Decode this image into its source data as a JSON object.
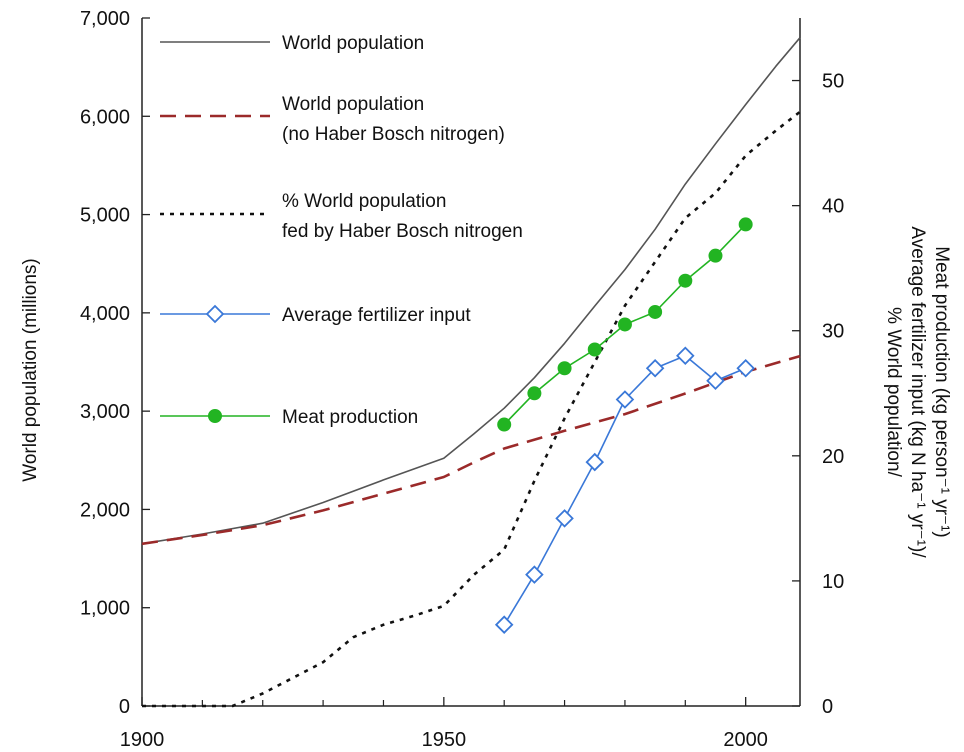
{
  "chart_data": {
    "type": "line",
    "title": "",
    "x": {
      "ticks": [
        1900,
        1950,
        2000
      ],
      "minor_ticks": [
        1910,
        1920,
        1930,
        1940,
        1960,
        1970,
        1980,
        1990
      ],
      "range": [
        1900,
        2009
      ]
    },
    "y_left": {
      "label": "World population (millions)",
      "ticks": [
        0,
        1000,
        2000,
        3000,
        4000,
        5000,
        6000,
        7000
      ],
      "tick_labels": [
        "0",
        "1,000",
        "2,000",
        "3,000",
        "4,000",
        "5,000",
        "6,000",
        "7,000"
      ],
      "range": [
        0,
        7000
      ]
    },
    "y_right": {
      "label_lines": [
        "% World population/",
        "Average fertilizer input (kg N ha⁻¹ yr⁻¹)/",
        "Meat production (kg person⁻¹ yr⁻¹)"
      ],
      "ticks": [
        0,
        10,
        20,
        30,
        40,
        50
      ],
      "range": [
        0,
        55
      ]
    },
    "grid": false,
    "legend_position": "top-left",
    "series": [
      {
        "name": "World population",
        "axis": "left",
        "style": "solid",
        "color": "#555555",
        "points": [
          [
            1900,
            1650
          ],
          [
            1910,
            1750
          ],
          [
            1920,
            1860
          ],
          [
            1930,
            2070
          ],
          [
            1940,
            2300
          ],
          [
            1950,
            2520
          ],
          [
            1955,
            2770
          ],
          [
            1960,
            3030
          ],
          [
            1965,
            3340
          ],
          [
            1970,
            3690
          ],
          [
            1975,
            4070
          ],
          [
            1980,
            4440
          ],
          [
            1985,
            4850
          ],
          [
            1990,
            5310
          ],
          [
            1995,
            5720
          ],
          [
            2000,
            6120
          ],
          [
            2005,
            6510
          ],
          [
            2009,
            6800
          ]
        ]
      },
      {
        "name": "World population\n(no Haber Bosch nitrogen)",
        "axis": "left",
        "style": "dashed",
        "color": "#9b2a2a",
        "points": [
          [
            1900,
            1650
          ],
          [
            1910,
            1740
          ],
          [
            1920,
            1840
          ],
          [
            1930,
            1990
          ],
          [
            1940,
            2160
          ],
          [
            1950,
            2330
          ],
          [
            1955,
            2480
          ],
          [
            1960,
            2620
          ],
          [
            1970,
            2800
          ],
          [
            1980,
            2970
          ],
          [
            1990,
            3180
          ],
          [
            2000,
            3400
          ],
          [
            2009,
            3560
          ]
        ]
      },
      {
        "name": "% World population\nfed by Haber Bosch nitrogen",
        "axis": "right",
        "style": "dotted",
        "color": "#111111",
        "points": [
          [
            1900,
            0
          ],
          [
            1915,
            0
          ],
          [
            1920,
            1
          ],
          [
            1930,
            3.5
          ],
          [
            1935,
            5.5
          ],
          [
            1940,
            6.5
          ],
          [
            1945,
            7.2
          ],
          [
            1950,
            8
          ],
          [
            1955,
            10.5
          ],
          [
            1960,
            12.5
          ],
          [
            1965,
            18
          ],
          [
            1970,
            23
          ],
          [
            1975,
            27.5
          ],
          [
            1980,
            32
          ],
          [
            1985,
            35.5
          ],
          [
            1990,
            39
          ],
          [
            1995,
            41
          ],
          [
            2000,
            44
          ],
          [
            2005,
            46
          ],
          [
            2009,
            47.5
          ]
        ]
      },
      {
        "name": "Average fertilizer input",
        "axis": "right",
        "style": "solid-diamond",
        "color": "#3a78d8",
        "points": [
          [
            1960,
            6.5
          ],
          [
            1965,
            10.5
          ],
          [
            1970,
            15
          ],
          [
            1975,
            19.5
          ],
          [
            1980,
            24.5
          ],
          [
            1985,
            27
          ],
          [
            1990,
            28
          ],
          [
            1995,
            26
          ],
          [
            2000,
            27
          ]
        ]
      },
      {
        "name": "Meat production",
        "axis": "right",
        "style": "solid-dot",
        "color": "#22b422",
        "points": [
          [
            1960,
            22.5
          ],
          [
            1965,
            25
          ],
          [
            1970,
            27
          ],
          [
            1975,
            28.5
          ],
          [
            1980,
            30.5
          ],
          [
            1985,
            31.5
          ],
          [
            1990,
            34
          ],
          [
            1995,
            36
          ],
          [
            2000,
            38.5
          ]
        ]
      }
    ]
  }
}
